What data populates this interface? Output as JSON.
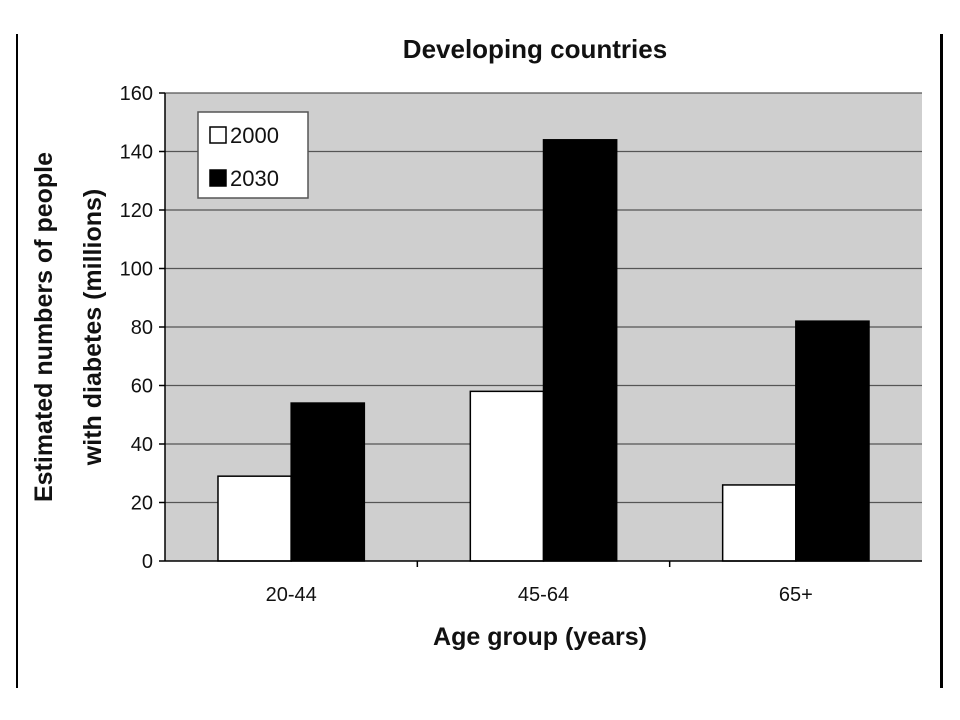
{
  "colors": {
    "plot_background": "#cfcfcf",
    "grid": "#555555",
    "bar_2000": "#ffffff",
    "bar_2030": "#000000",
    "frame": "#000000"
  },
  "chart_data": {
    "type": "bar",
    "title": "Developing countries",
    "xlabel": "Age group (years)",
    "ylabel": [
      "Estimated numbers of people",
      "with diabetes (millions)"
    ],
    "categories": [
      "20-44",
      "45-64",
      "65+"
    ],
    "series": [
      {
        "name": "2000",
        "values": [
          29,
          58,
          26
        ],
        "color": "#ffffff"
      },
      {
        "name": "2030",
        "values": [
          54,
          144,
          82
        ],
        "color": "#000000"
      }
    ],
    "ylim": [
      0,
      160
    ],
    "yticks": [
      0,
      20,
      40,
      60,
      80,
      100,
      120,
      140,
      160
    ],
    "grid": true,
    "legend_position": "top-left"
  }
}
